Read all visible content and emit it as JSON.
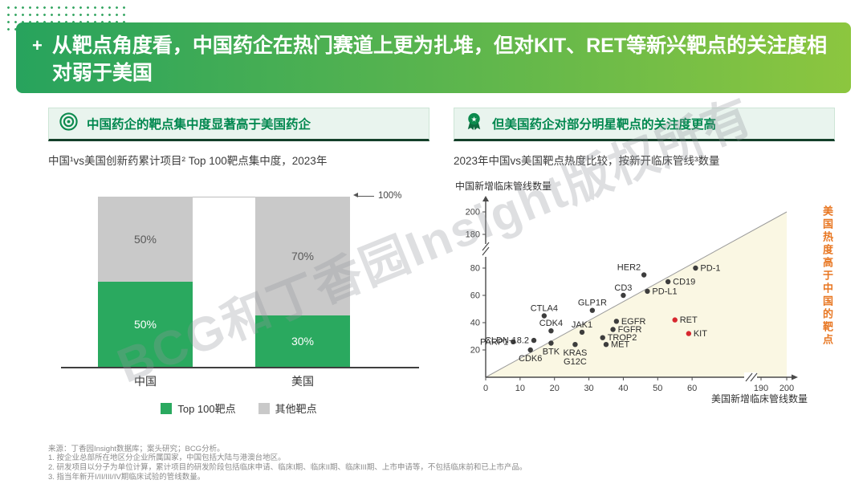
{
  "slide": {
    "plus": "+",
    "title": "从靶点角度看，中国药企在热门赛道上更为扎堆，但对KIT、RET等新兴靶点的关注度相对弱于美国"
  },
  "watermark": "BCG和丁香园Insight版权所有",
  "colors": {
    "accent_green": "#00874e",
    "banner_gradient_start": "#27a35d",
    "banner_gradient_end": "#8cc63f",
    "bar_green": "#2aa95f",
    "bar_gray": "#c9c9c9",
    "highlight_red": "#d7282f",
    "side_note_orange": "#e87722"
  },
  "left_panel": {
    "header": "中国药企的靶点集中度显著高于美国药企",
    "subtitle": "中国¹vs美国创新药累计项目² Top 100靶点集中度，2023年",
    "legend": [
      {
        "label": "Top 100靶点",
        "color": "#2aa95f"
      },
      {
        "label": "其他靶点",
        "color": "#c9c9c9"
      }
    ]
  },
  "right_panel": {
    "header": "但美国药企对部分明星靶点的关注度更高",
    "subtitle": "2023年中国vs美国靶点热度比较，按新开临床管线³数量",
    "y_axis_title": "中国新增临床管线数量",
    "x_axis_title": "美国新增临床管线数量",
    "side_note": "美国热度高于中国的靶点",
    "side_note_color": "#e87722"
  },
  "footnotes": [
    "来源：丁香园Insight数据库；案头研究；BCG分析。",
    "1. 按企业总部所在地区分企业所属国家，中国包括大陆与港澳台地区。",
    "2. 研发项目以分子为单位计算，累计项目的研发阶段包括临床申请、临床I期、临床II期、临床III期、上市申请等，不包括临床前和已上市产品。",
    "3. 指当年新开I/II/III/IV期临床试验的管线数量。"
  ],
  "chart_data": [
    {
      "type": "bar",
      "stacked": true,
      "title": "中国¹vs美国创新药累计项目² Top 100靶点集中度，2023年",
      "categories": [
        "中国",
        "美国"
      ],
      "series": [
        {
          "name": "Top 100靶点",
          "color": "#2aa95f",
          "label_color": "#ffffff",
          "values": [
            50,
            30
          ]
        },
        {
          "name": "其他靶点",
          "color": "#c9c9c9",
          "label_color": "#595959",
          "values": [
            50,
            70
          ]
        }
      ],
      "unit": "%",
      "ylim": [
        0,
        100
      ],
      "annotation": "100%"
    },
    {
      "type": "scatter",
      "title": "2023年中国vs美国靶点热度比较，按新开临床管线³数量",
      "xlabel": "美国新增临床管线数量",
      "ylabel": "中国新增临床管线数量",
      "x_ticks": [
        0,
        10,
        20,
        30,
        40,
        50,
        60
      ],
      "x_ticks_after_break": [
        190,
        200
      ],
      "y_ticks": [
        20,
        40,
        60,
        80
      ],
      "y_ticks_after_break": [
        180,
        200
      ],
      "axis_break": true,
      "diagonal_line": true,
      "shaded_region": "below-diagonal",
      "shade_color": "#faf7e3",
      "point_color": "#3d3d3d",
      "points": [
        {
          "label": "PARP1",
          "x": 8,
          "y": 26,
          "side": "left"
        },
        {
          "label": "CLDN-18.2",
          "x": 14,
          "y": 27,
          "side": "left"
        },
        {
          "label": "CDK6",
          "x": 13,
          "y": 20,
          "side": "bottom"
        },
        {
          "label": "BTK",
          "x": 19,
          "y": 25,
          "side": "bottom"
        },
        {
          "label": "KRAS",
          "label2": "G12C",
          "x": 26,
          "y": 24,
          "side": "bottom"
        },
        {
          "label": "MET",
          "x": 35,
          "y": 24,
          "side": "right"
        },
        {
          "label": "TROP2",
          "x": 34,
          "y": 29,
          "side": "right"
        },
        {
          "label": "JAK1",
          "x": 28,
          "y": 33,
          "side": "top"
        },
        {
          "label": "CDK4",
          "x": 19,
          "y": 34,
          "side": "top"
        },
        {
          "label": "CTLA4",
          "x": 17,
          "y": 45,
          "side": "top"
        },
        {
          "label": "GLP1R",
          "x": 31,
          "y": 49,
          "side": "top"
        },
        {
          "label": "EGFR",
          "x": 38,
          "y": 41,
          "side": "right"
        },
        {
          "label": "FGFR",
          "x": 37,
          "y": 35,
          "side": "right"
        },
        {
          "label": "CD3",
          "x": 40,
          "y": 60,
          "side": "top"
        },
        {
          "label": "PD-L1",
          "x": 47,
          "y": 63,
          "side": "right"
        },
        {
          "label": "CD19",
          "x": 53,
          "y": 70,
          "side": "right"
        },
        {
          "label": "HER2",
          "x": 46,
          "y": 75,
          "side": "top-left"
        },
        {
          "label": "PD-1",
          "x": 61,
          "y": 80,
          "side": "right"
        },
        {
          "label": "RET",
          "x": 55,
          "y": 42,
          "side": "right",
          "color": "#d7282f"
        },
        {
          "label": "KIT",
          "x": 59,
          "y": 32,
          "side": "right",
          "color": "#d7282f"
        }
      ]
    }
  ]
}
